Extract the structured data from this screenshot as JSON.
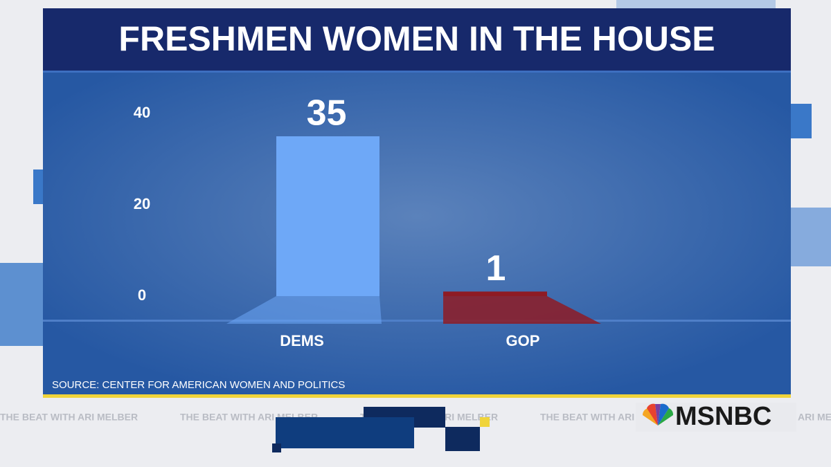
{
  "chart_data": {
    "type": "bar",
    "title": "FRESHMEN WOMEN IN THE HOUSE",
    "categories": [
      "DEMS",
      "GOP"
    ],
    "values": [
      35,
      1
    ],
    "colors": [
      "#6ea8f7",
      "#8e1b24"
    ],
    "ylim": [
      0,
      40
    ],
    "yticks": [
      0,
      20,
      40
    ],
    "grid": false,
    "source": "SOURCE: CENTER FOR AMERICAN WOMEN AND POLITICS"
  },
  "footer": {
    "show": "THE BEAT WITH ARI MELBER",
    "network": "MSNBC"
  }
}
